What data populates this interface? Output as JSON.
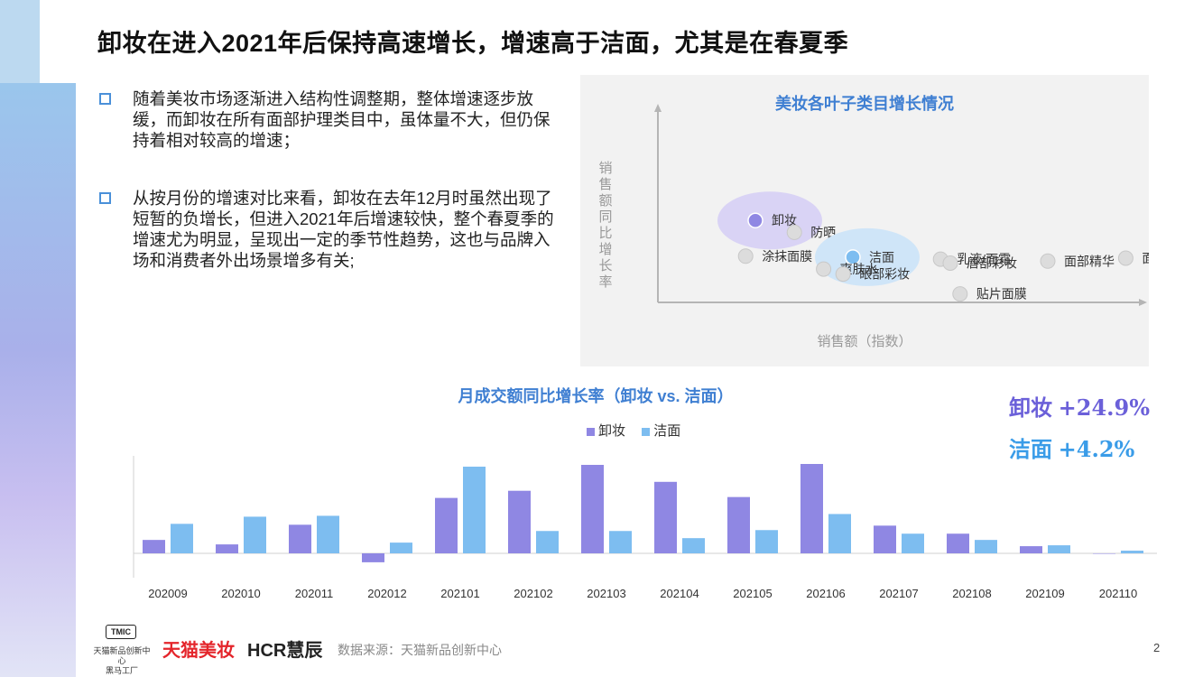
{
  "title": "卸妆在进入2021年后保持高速增长，增速高于洁面，尤其是在春夏季",
  "bullets": [
    "随着美妆市场逐渐进入结构性调整期，整体增速逐步放缓，而卸妆在所有面部护理类目中，虽体量不大，但仍保持着相对较高的增速；",
    "从按月份的增速对比来看，卸妆在去年12月时虽然出现了短暂的负增长，但进入2021年后增速较快，整个春夏季的增速尤为明显，呈现出一定的季节性趋势，这也与品牌入场和消费者外出场景增多有关;"
  ],
  "colors": {
    "xiezhuang": "#8f87e3",
    "jiemian": "#7dbdf0",
    "accent": "#3f7fd2",
    "gray_dot": "#dcdcdc"
  },
  "chart_data": [
    {
      "type": "scatter",
      "title": "美妆各叶子类目增长情况",
      "xlabel": "销售额（指数）",
      "ylabel": "销售额同比增长率",
      "points": [
        {
          "label": "卸妆",
          "x": 1.0,
          "y": 8.8,
          "highlight": "xiezhuang"
        },
        {
          "label": "防晒",
          "x": 1.4,
          "y": 7.6
        },
        {
          "label": "涂抹面膜",
          "x": 0.9,
          "y": 5.2
        },
        {
          "label": "洁面",
          "x": 2.0,
          "y": 5.1,
          "highlight": "jiemian"
        },
        {
          "label": "乳液/面霜",
          "x": 2.9,
          "y": 4.9
        },
        {
          "label": "唇部彩妆",
          "x": 3.0,
          "y": 4.5
        },
        {
          "label": "面部精华",
          "x": 4.0,
          "y": 4.7
        },
        {
          "label": "面部彩妆",
          "x": 4.8,
          "y": 5.0
        },
        {
          "label": "爽肤水",
          "x": 1.7,
          "y": 3.9
        },
        {
          "label": "眼部彩妆",
          "x": 1.9,
          "y": 3.4
        },
        {
          "label": "贴片面膜",
          "x": 3.1,
          "y": 1.4
        }
      ]
    },
    {
      "type": "bar",
      "title": "月成交额同比增长率（卸妆 vs. 洁面）",
      "categories": [
        "202009",
        "202010",
        "202011",
        "202012",
        "202101",
        "202102",
        "202103",
        "202104",
        "202105",
        "202106",
        "202107",
        "202108",
        "202109",
        "202110"
      ],
      "series": [
        {
          "name": "卸妆",
          "values": [
            15,
            10,
            32,
            -10,
            62,
            70,
            99,
            80,
            63,
            100,
            31,
            22,
            8,
            0
          ]
        },
        {
          "name": "洁面",
          "values": [
            33,
            41,
            42,
            12,
            97,
            25,
            25,
            17,
            26,
            44,
            22,
            15,
            9,
            3
          ]
        }
      ]
    }
  ],
  "big_stats": [
    {
      "label": "卸妆",
      "value": "+24.9%"
    },
    {
      "label": "洁面",
      "value": "+4.2%"
    }
  ],
  "footer": {
    "tmic": "TMIC",
    "tmic_sub": "天猫新品创新中心",
    "tmic_sub2": "黑马工厂",
    "tmall": "天猫美妆",
    "hcr": "HCR慧辰",
    "source": "数据来源：天猫新品创新中心",
    "page": "2"
  }
}
